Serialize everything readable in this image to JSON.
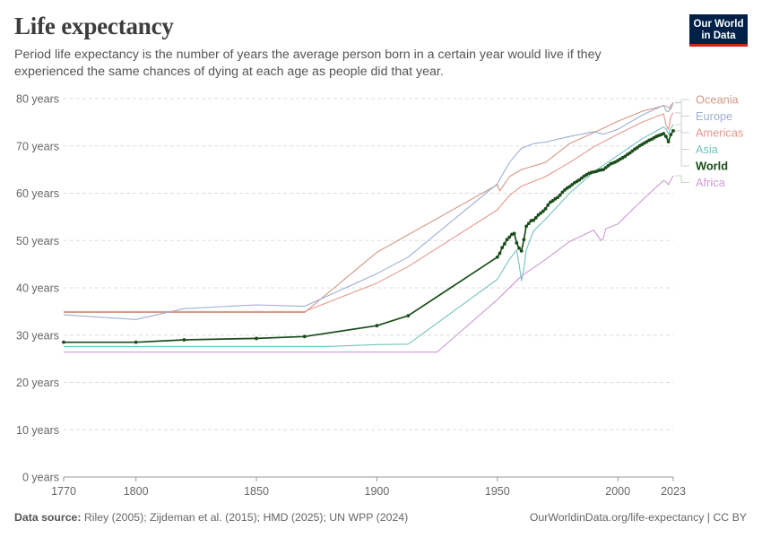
{
  "header": {
    "title": "Life expectancy",
    "subtitle": "Period life expectancy is the number of years the average person born in a certain year would live if they experienced the same chances of dying at each age as people did that year.",
    "logo_line1": "Our World",
    "logo_line2": "in Data"
  },
  "footer": {
    "source_label": "Data source:",
    "source_text": "Riley (2005); Zijdeman et al. (2015); HMD (2025); UN WPP (2024)",
    "url": "OurWorldinData.org/life-expectancy | CC BY"
  },
  "chart_data": {
    "type": "line",
    "title": "Life expectancy",
    "xlim": [
      1770,
      2023
    ],
    "ylim": [
      0,
      80
    ],
    "y_ticks": [
      0,
      10,
      20,
      30,
      40,
      50,
      60,
      70,
      80
    ],
    "y_tick_labels": [
      "0 years",
      "10 years",
      "20 years",
      "30 years",
      "40 years",
      "50 years",
      "60 years",
      "70 years",
      "80 years"
    ],
    "x_ticks": [
      1770,
      1800,
      1850,
      1900,
      1950,
      2000,
      2023
    ],
    "x_tick_labels": [
      "1770",
      "1800",
      "1850",
      "1900",
      "1950",
      "2000",
      "2023"
    ],
    "grid": "horizontal dashed",
    "legend_placement": "right",
    "series": [
      {
        "name": "Oceania",
        "color": "#d49886",
        "bold": false,
        "markers": false,
        "points": [
          [
            1770,
            34.8
          ],
          [
            1870,
            34.8
          ],
          [
            1900,
            47.5
          ],
          [
            1950,
            61.8
          ],
          [
            1951,
            60.5
          ],
          [
            1955,
            63.5
          ],
          [
            1960,
            65
          ],
          [
            1970,
            66.5
          ],
          [
            1980,
            70.5
          ],
          [
            1990,
            72.8
          ],
          [
            2000,
            75.2
          ],
          [
            2010,
            77.3
          ],
          [
            2019,
            78.5
          ],
          [
            2021,
            78.2
          ],
          [
            2022,
            77.8
          ],
          [
            2023,
            79.2
          ]
        ]
      },
      {
        "name": "Europe",
        "color": "#9dafd1",
        "bold": false,
        "markers": false,
        "points": [
          [
            1770,
            34.3
          ],
          [
            1800,
            33.3
          ],
          [
            1820,
            35.6
          ],
          [
            1850,
            36.4
          ],
          [
            1870,
            36.1
          ],
          [
            1900,
            43
          ],
          [
            1913,
            46.5
          ],
          [
            1950,
            62
          ],
          [
            1955,
            66.5
          ],
          [
            1960,
            69.5
          ],
          [
            1965,
            70.5
          ],
          [
            1970,
            70.8
          ],
          [
            1980,
            72
          ],
          [
            1990,
            73
          ],
          [
            1994,
            72.5
          ],
          [
            2000,
            73.5
          ],
          [
            2010,
            76.5
          ],
          [
            2019,
            78.6
          ],
          [
            2020,
            77.4
          ],
          [
            2021,
            77.2
          ],
          [
            2022,
            78.6
          ],
          [
            2023,
            79.1
          ]
        ]
      },
      {
        "name": "Americas",
        "color": "#e6978d",
        "bold": false,
        "markers": false,
        "points": [
          [
            1770,
            35
          ],
          [
            1870,
            35
          ],
          [
            1900,
            41
          ],
          [
            1913,
            44.5
          ],
          [
            1950,
            56.5
          ],
          [
            1955,
            59.5
          ],
          [
            1960,
            61.5
          ],
          [
            1970,
            63.5
          ],
          [
            1980,
            66.5
          ],
          [
            1990,
            69.8
          ],
          [
            2000,
            72.5
          ],
          [
            2010,
            75
          ],
          [
            2019,
            76.8
          ],
          [
            2020,
            74.4
          ],
          [
            2021,
            73.5
          ],
          [
            2022,
            76.2
          ],
          [
            2023,
            77
          ]
        ]
      },
      {
        "name": "Asia",
        "color": "#74c2bc",
        "bold": false,
        "markers": false,
        "points": [
          [
            1770,
            27.6
          ],
          [
            1880,
            27.6
          ],
          [
            1900,
            28
          ],
          [
            1913,
            28.1
          ],
          [
            1950,
            41.8
          ],
          [
            1955,
            46
          ],
          [
            1958,
            48
          ],
          [
            1959,
            45
          ],
          [
            1960,
            41.5
          ],
          [
            1961,
            44
          ],
          [
            1962,
            48
          ],
          [
            1965,
            52
          ],
          [
            1970,
            54.5
          ],
          [
            1980,
            60
          ],
          [
            1990,
            64.5
          ],
          [
            2000,
            68
          ],
          [
            2010,
            71.5
          ],
          [
            2019,
            74
          ],
          [
            2020,
            73.6
          ],
          [
            2021,
            72.6
          ],
          [
            2022,
            73.8
          ],
          [
            2023,
            74.5
          ]
        ]
      },
      {
        "name": "Africa",
        "color": "#cc9ad3",
        "bold": false,
        "markers": false,
        "points": [
          [
            1770,
            26.4
          ],
          [
            1925,
            26.4
          ],
          [
            1950,
            37.5
          ],
          [
            1960,
            42.5
          ],
          [
            1970,
            46
          ],
          [
            1980,
            49.8
          ],
          [
            1985,
            51
          ],
          [
            1990,
            52.2
          ],
          [
            1993,
            50
          ],
          [
            1994,
            50.5
          ],
          [
            1995,
            52.5
          ],
          [
            2000,
            53.5
          ],
          [
            2010,
            58.5
          ],
          [
            2019,
            62.7
          ],
          [
            2020,
            62.4
          ],
          [
            2021,
            61.8
          ],
          [
            2022,
            62.8
          ],
          [
            2023,
            63.7
          ]
        ]
      },
      {
        "name": "World",
        "color": "#1a4d1a",
        "bold": true,
        "markers": true,
        "points": [
          [
            1770,
            28.5
          ],
          [
            1800,
            28.5
          ],
          [
            1820,
            29
          ],
          [
            1850,
            29.3
          ],
          [
            1870,
            29.7
          ],
          [
            1900,
            32
          ],
          [
            1913,
            34.1
          ],
          [
            1950,
            46.5
          ],
          [
            1951,
            47.3
          ],
          [
            1952,
            48.5
          ],
          [
            1953,
            49.3
          ],
          [
            1954,
            50.2
          ],
          [
            1955,
            50.7
          ],
          [
            1956,
            51.3
          ],
          [
            1957,
            51.5
          ],
          [
            1958,
            49.5
          ],
          [
            1959,
            48.4
          ],
          [
            1960,
            47.8
          ],
          [
            1961,
            50.2
          ],
          [
            1962,
            53
          ],
          [
            1963,
            53.6
          ],
          [
            1964,
            54.2
          ],
          [
            1965,
            54.3
          ],
          [
            1966,
            54.8
          ],
          [
            1967,
            55.4
          ],
          [
            1968,
            55.8
          ],
          [
            1969,
            56.2
          ],
          [
            1970,
            56.7
          ],
          [
            1971,
            57.5
          ],
          [
            1972,
            58.1
          ],
          [
            1973,
            58.4
          ],
          [
            1974,
            58.8
          ],
          [
            1975,
            59.1
          ],
          [
            1976,
            59.6
          ],
          [
            1977,
            60.2
          ],
          [
            1978,
            60.7
          ],
          [
            1979,
            61.1
          ],
          [
            1980,
            61.4
          ],
          [
            1981,
            61.8
          ],
          [
            1982,
            62.2
          ],
          [
            1983,
            62.5
          ],
          [
            1984,
            62.8
          ],
          [
            1985,
            63.2
          ],
          [
            1986,
            63.6
          ],
          [
            1987,
            63.9
          ],
          [
            1988,
            64.2
          ],
          [
            1989,
            64.4
          ],
          [
            1990,
            64.5
          ],
          [
            1991,
            64.6
          ],
          [
            1992,
            64.8
          ],
          [
            1993,
            64.9
          ],
          [
            1994,
            65
          ],
          [
            1995,
            65.4
          ],
          [
            1996,
            65.8
          ],
          [
            1997,
            66.2
          ],
          [
            1998,
            66.4
          ],
          [
            1999,
            66.6
          ],
          [
            2000,
            66.9
          ],
          [
            2001,
            67.2
          ],
          [
            2002,
            67.5
          ],
          [
            2003,
            67.8
          ],
          [
            2004,
            68.2
          ],
          [
            2005,
            68.5
          ],
          [
            2006,
            68.9
          ],
          [
            2007,
            69.3
          ],
          [
            2008,
            69.6
          ],
          [
            2009,
            70
          ],
          [
            2010,
            70.3
          ],
          [
            2011,
            70.6
          ],
          [
            2012,
            70.9
          ],
          [
            2013,
            71.2
          ],
          [
            2014,
            71.4
          ],
          [
            2015,
            71.7
          ],
          [
            2016,
            72
          ],
          [
            2017,
            72.2
          ],
          [
            2018,
            72.4
          ],
          [
            2019,
            72.6
          ],
          [
            2020,
            72
          ],
          [
            2021,
            70.9
          ],
          [
            2022,
            72.4
          ],
          [
            2023,
            73.2
          ]
        ]
      }
    ],
    "legend": [
      {
        "name": "Oceania",
        "color": "#d49886",
        "bold": false
      },
      {
        "name": "Europe",
        "color": "#9dafd1",
        "bold": false
      },
      {
        "name": "Americas",
        "color": "#e6978d",
        "bold": false
      },
      {
        "name": "Asia",
        "color": "#74c2bc",
        "bold": false
      },
      {
        "name": "World",
        "color": "#1a4d1a",
        "bold": true
      },
      {
        "name": "Africa",
        "color": "#cc9ad3",
        "bold": false
      }
    ]
  }
}
